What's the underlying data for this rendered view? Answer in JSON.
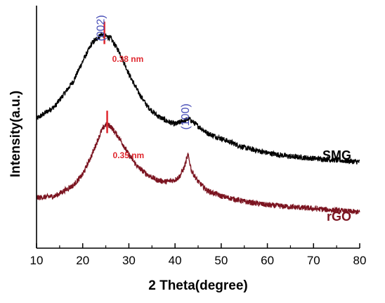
{
  "chart_data": {
    "type": "line",
    "xlabel": "2 Theta(degree)",
    "ylabel": "Intensity(a.u.)",
    "xlim": [
      10,
      80
    ],
    "x_ticks": [
      10,
      20,
      30,
      40,
      50,
      60,
      70,
      80
    ],
    "y_ticks": false,
    "grid": false,
    "legend": "none",
    "series": [
      {
        "name": "SMG",
        "color": "#000000",
        "x": [
          10,
          14,
          18,
          20,
          22,
          24,
          26,
          28,
          30,
          32,
          34,
          36,
          38,
          40,
          42,
          43,
          45,
          47,
          50,
          55,
          60,
          65,
          70,
          75,
          80
        ],
        "y": [
          0.37,
          0.44,
          0.58,
          0.69,
          0.79,
          0.84,
          0.82,
          0.74,
          0.62,
          0.52,
          0.44,
          0.39,
          0.36,
          0.34,
          0.36,
          0.37,
          0.33,
          0.29,
          0.26,
          0.21,
          0.18,
          0.16,
          0.15,
          0.14,
          0.13
        ]
      },
      {
        "name": "rGO",
        "color": "#7b1420",
        "x": [
          10,
          14,
          18,
          20,
          22,
          24,
          25,
          26,
          28,
          30,
          32,
          34,
          36,
          38,
          40,
          41,
          42,
          42.8,
          43.6,
          45,
          47,
          50,
          55,
          60,
          65,
          70,
          75,
          80
        ],
        "y": [
          -0.07,
          -0.06,
          0.0,
          0.06,
          0.17,
          0.3,
          0.34,
          0.33,
          0.26,
          0.17,
          0.1,
          0.06,
          0.03,
          0.02,
          0.03,
          0.05,
          0.1,
          0.17,
          0.08,
          0.02,
          -0.03,
          -0.06,
          -0.09,
          -0.11,
          -0.12,
          -0.13,
          -0.14,
          -0.15
        ]
      }
    ],
    "series_labels": [
      "SMG",
      "rGO"
    ],
    "annotations": [
      {
        "text": "(002)",
        "x": 25,
        "kind": "peak-index"
      },
      {
        "text": "(100)",
        "x": 43,
        "kind": "peak-index"
      },
      {
        "text": "0.38 nm",
        "x": 24.7,
        "kind": "d-spacing"
      },
      {
        "text": "0.35 nm",
        "x": 25.3,
        "kind": "d-spacing"
      }
    ]
  },
  "colors": {
    "smg": "#000000",
    "rgo": "#7b1420",
    "miller_index": "#4a50b8",
    "d_spacing": "#e0282f"
  }
}
